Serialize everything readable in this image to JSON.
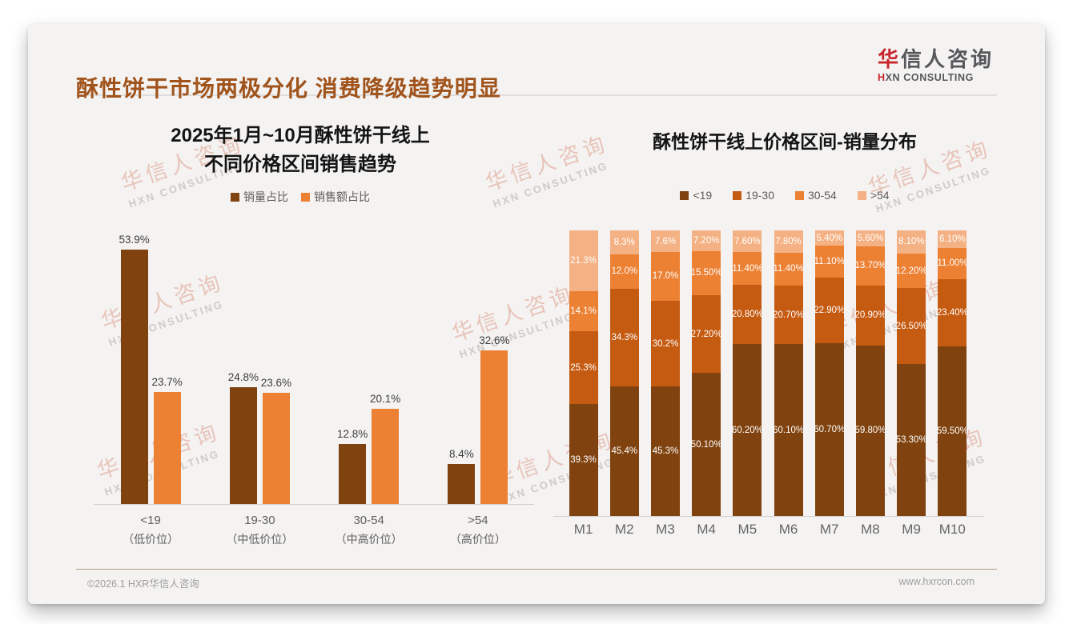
{
  "page": {
    "title": "酥性饼干市场两极分化 消费降级趋势明显",
    "footer_left": "©2026.1 HXR华信人咨询",
    "footer_right": "www.hxrcon.com"
  },
  "logo": {
    "cn_first": "华",
    "cn_rest": "信人咨询",
    "en_first": "H",
    "en_rest": "XN CONSULTING"
  },
  "watermark": {
    "cn": "华信人咨询",
    "en": "HXN CONSULTING"
  },
  "colors": {
    "title_accent": "#A0541C",
    "logo_red": "#C9252C",
    "dark_brown": "#80430F",
    "brown_orange": "#C55A11",
    "orange": "#EC8033",
    "light_peach": "#F4B183",
    "card_bg": "#f4f3f2"
  },
  "chart_data": [
    {
      "type": "bar",
      "title": "2025年1月~10月酥性饼干线上不同价格区间销售趋势",
      "title_lines": [
        "2025年1月~10月酥性饼干线上",
        "不同价格区间销售趋势"
      ],
      "categories": [
        "<19",
        "19-30",
        "30-54",
        ">54"
      ],
      "category_sublabels": [
        "（低价位）",
        "（中低价位）",
        "（中高价位）",
        "（高价位）"
      ],
      "series": [
        {
          "name": "销量占比",
          "color": "#80430F",
          "values": [
            53.9,
            24.8,
            12.8,
            8.4
          ],
          "labels": [
            "53.9%",
            "24.8%",
            "12.8%",
            "8.4%"
          ]
        },
        {
          "name": "销售额占比",
          "color": "#EC8033",
          "values": [
            23.7,
            23.6,
            20.1,
            32.6
          ],
          "labels": [
            "23.7%",
            "23.6%",
            "20.1%",
            "32.6%"
          ]
        }
      ],
      "ylim": [
        0,
        60
      ],
      "grid": false,
      "legend_position": "top"
    },
    {
      "type": "stacked-bar",
      "title": "酥性饼干线上价格区间-销量分布",
      "categories": [
        "M1",
        "M2",
        "M3",
        "M4",
        "M5",
        "M6",
        "M7",
        "M8",
        "M9",
        "M10"
      ],
      "series": [
        {
          "name": "<19",
          "color": "#80430F",
          "values": [
            39.3,
            45.4,
            45.3,
            50.1,
            60.2,
            60.1,
            60.7,
            59.8,
            53.3,
            59.5
          ],
          "labels": [
            "39.3%",
            "45.4%",
            "45.3%",
            "50.10%",
            "60.20%",
            "60.10%",
            "60.70%",
            "59.80%",
            "53.30%",
            "59.50%"
          ]
        },
        {
          "name": "19-30",
          "color": "#C55A11",
          "values": [
            25.3,
            34.3,
            30.2,
            27.2,
            20.8,
            20.7,
            22.9,
            20.9,
            26.5,
            23.4
          ],
          "labels": [
            "25.3%",
            "34.3%",
            "30.2%",
            "27.20%",
            "20.80%",
            "20.70%",
            "22.90%",
            "20.90%",
            "26.50%",
            "23.40%"
          ]
        },
        {
          "name": "30-54",
          "color": "#EC8033",
          "values": [
            14.1,
            12.0,
            17.0,
            15.5,
            11.4,
            11.4,
            11.1,
            13.7,
            12.2,
            11.0
          ],
          "labels": [
            "14.1%",
            "12.0%",
            "17.0%",
            "15.50%",
            "11.40%",
            "11.40%",
            "11.10%",
            "13.70%",
            "12.20%",
            "11.00%"
          ]
        },
        {
          "name": ">54",
          "color": "#F4B183",
          "values": [
            21.3,
            8.3,
            7.6,
            7.2,
            7.6,
            7.8,
            5.4,
            5.6,
            8.1,
            6.1
          ],
          "labels": [
            "21.3%",
            "8.3%",
            "7.6%",
            "7.20%",
            "7.60%",
            "7.80%",
            "5.40%",
            "5.60%",
            "8.10%",
            "6.10%"
          ]
        }
      ],
      "ylim": [
        0,
        100
      ],
      "grid": false,
      "legend_position": "top"
    }
  ]
}
